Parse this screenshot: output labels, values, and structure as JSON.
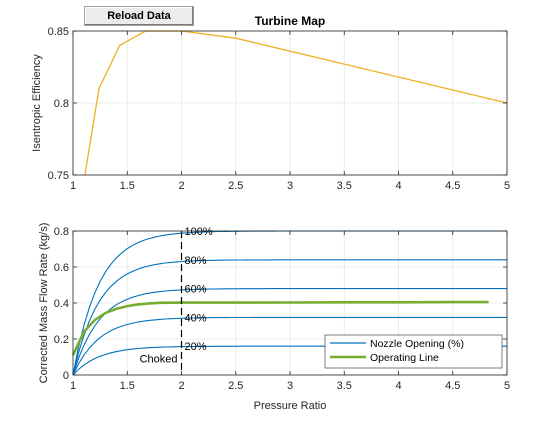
{
  "button": {
    "label": "Reload Data"
  },
  "colors": {
    "efficiency": "#EDB120",
    "nozzle": "#0072BD",
    "operating": "#77AC30",
    "grid": "#e6e6e6",
    "axis": "#262626"
  },
  "chart_data": [
    {
      "type": "line",
      "title": "Turbine Map",
      "xlabel": "",
      "ylabel": "Isentropic Efficiency",
      "xlim": [
        1,
        5
      ],
      "ylim": [
        0.75,
        0.85
      ],
      "xticks": [
        "1",
        "1.5",
        "2",
        "2.5",
        "3",
        "3.5",
        "4",
        "4.5",
        "5"
      ],
      "yticks": [
        "0.75",
        "0.8",
        "0.85"
      ],
      "grid": true,
      "series": [
        {
          "x": [
            1.11,
            1.24,
            1.43,
            1.67,
            2.0,
            2.5,
            5.0
          ],
          "y": [
            0.75,
            0.81,
            0.84,
            0.85,
            0.85,
            0.845,
            0.8
          ]
        }
      ]
    },
    {
      "type": "line",
      "title": "",
      "xlabel": "Pressure Ratio",
      "ylabel": "Corrected Mass Flow Rate (kg/s)",
      "xlim": [
        1,
        5
      ],
      "ylim": [
        0,
        0.8
      ],
      "xticks": [
        "1",
        "1.5",
        "2",
        "2.5",
        "3",
        "3.5",
        "4",
        "4.5",
        "5"
      ],
      "yticks": [
        "0",
        "0.2",
        "0.4",
        "0.6",
        "0.8"
      ],
      "grid": true,
      "legend_position": "bottom-right",
      "legend": [
        "Nozzle Opening (%)",
        "Operating Line"
      ],
      "annotations": {
        "choke_line_x": 2,
        "choked_label": "Choked",
        "opening_labels": [
          "100%",
          "80%",
          "60%",
          "40%",
          "20%"
        ]
      },
      "nozzle_opening_levels": [
        0.8,
        0.64,
        0.48,
        0.32,
        0.16
      ],
      "operating_line": {
        "x": [
          1.0,
          1.1,
          1.2,
          1.3,
          1.4,
          1.5,
          1.6,
          1.7,
          1.8,
          2.0,
          2.5,
          3.0,
          3.5,
          4.0,
          4.5,
          4.83
        ],
        "y": [
          0.11,
          0.24,
          0.305,
          0.345,
          0.368,
          0.383,
          0.392,
          0.398,
          0.401,
          0.402,
          0.402,
          0.403,
          0.404,
          0.404,
          0.405,
          0.405
        ]
      }
    }
  ]
}
